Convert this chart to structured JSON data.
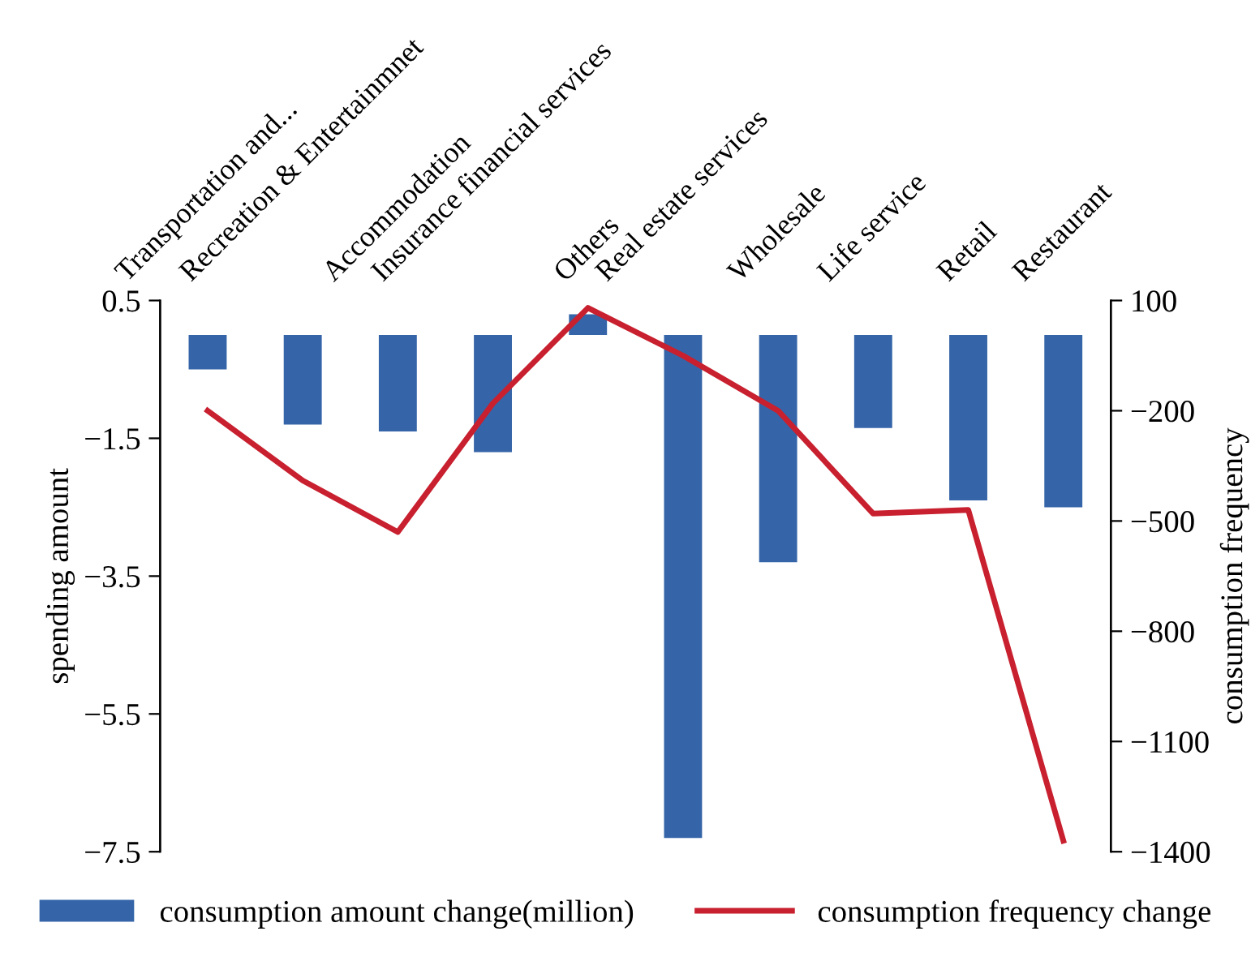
{
  "chart_data": {
    "type": "bar",
    "categories": [
      "Transportation and...",
      "Recreation & Entertainmnet",
      "Accommodation",
      "Insurance financial services",
      "Others",
      "Real estate services",
      "Wholesale",
      "Life service",
      "Retail",
      "Restaurant"
    ],
    "series": [
      {
        "name": "consumption amount change(million)",
        "type": "bar",
        "color": "#3565a8",
        "values": [
          -0.5,
          -1.3,
          -1.4,
          -1.7,
          0.3,
          -7.3,
          -3.3,
          -1.35,
          -2.4,
          -2.5
        ]
      },
      {
        "name": "consumption frequency change",
        "type": "line",
        "axis": "y2",
        "color": "#c8202f",
        "values": [
          -200,
          -390,
          -530,
          -180,
          80,
          -50,
          -200,
          -480,
          -470,
          -1370
        ]
      }
    ],
    "ylabel": "spending amount",
    "y2label": "consumption frequency",
    "ylim": [
      -7.5,
      0.5
    ],
    "yticks": [
      0.5,
      {
        "value": -1.5,
        "label": "−1.5"
      },
      {
        "value": -3.5,
        "label": "−3.5"
      },
      {
        "value": -5.5,
        "label": "−5.5"
      },
      {
        "value": -7.5,
        "label": "−7.5"
      }
    ],
    "y2lim": [
      -1400,
      100
    ],
    "y2ticks": [
      100,
      {
        "value": -200,
        "label": "−200"
      },
      {
        "value": -500,
        "label": "−500"
      },
      {
        "value": -800,
        "label": "−800"
      },
      {
        "value": -1100,
        "label": "−1100"
      },
      {
        "value": -1400,
        "label": "−1400"
      }
    ],
    "grid": false,
    "legend": "bottom",
    "marker": "none",
    "line_style": "solid"
  }
}
